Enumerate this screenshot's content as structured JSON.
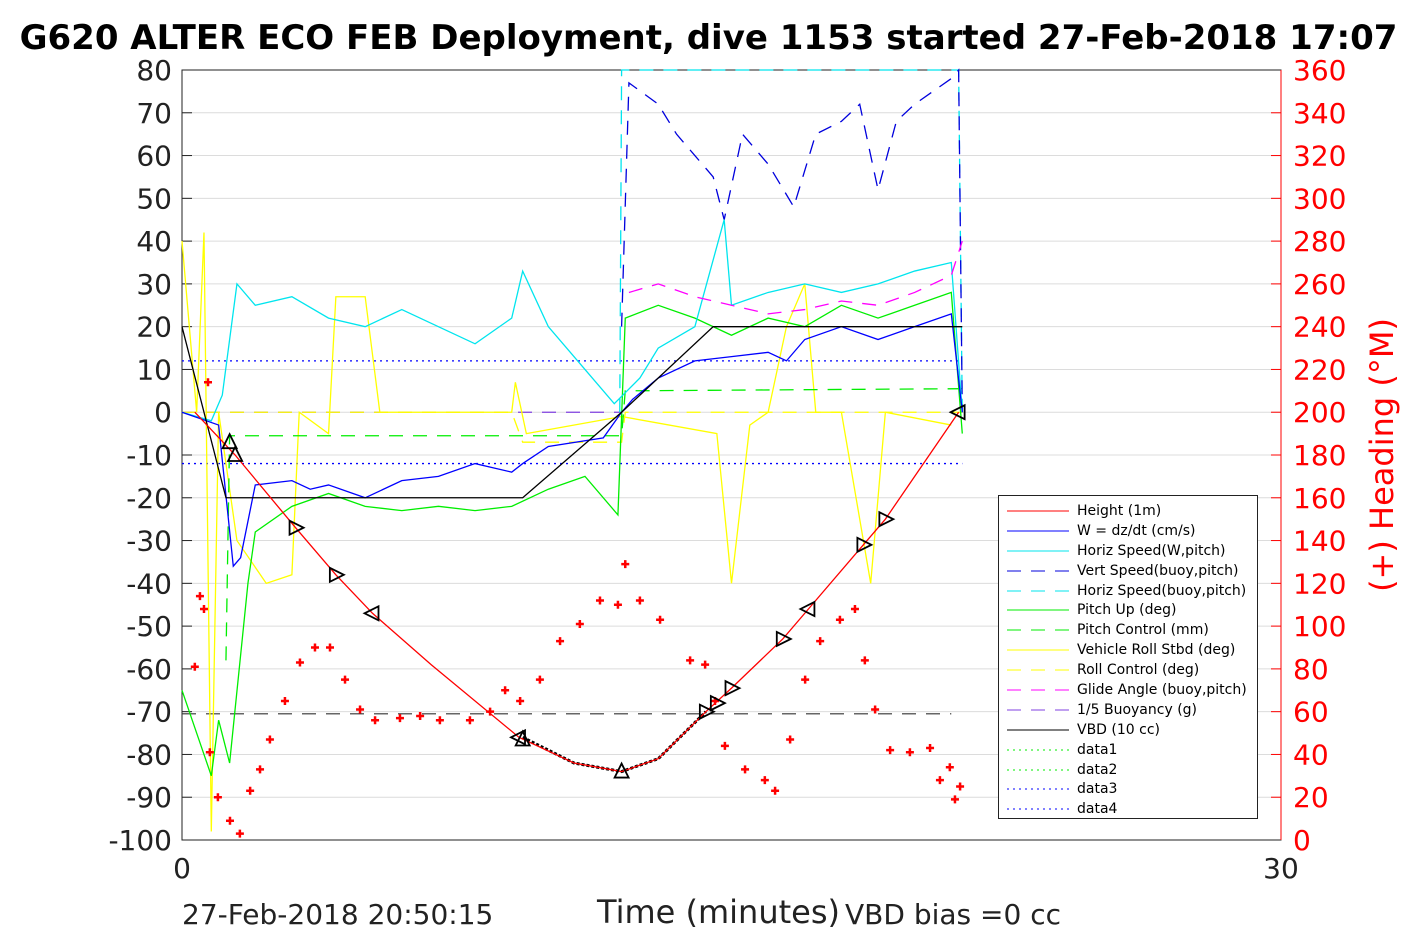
{
  "chart_data": {
    "type": "line",
    "title": "G620 ALTER ECO FEB Deployment, dive 1153 started 27-Feb-2018 17:07",
    "xlabel": "Time (minutes)",
    "ylabel_right": "(+) Heading (°M)",
    "xlim": [
      0,
      30
    ],
    "ylim": [
      -100,
      80
    ],
    "ylim_right": [
      0,
      360
    ],
    "xticks": [
      "0",
      "30"
    ],
    "yticks": [
      "80",
      "70",
      "60",
      "50",
      "40",
      "30",
      "20",
      "10",
      "0",
      "-10",
      "-20",
      "-30",
      "-40",
      "-50",
      "-60",
      "-70",
      "-80",
      "-90",
      "-100"
    ],
    "yticks_right": [
      "360",
      "340",
      "320",
      "300",
      "280",
      "260",
      "240",
      "220",
      "200",
      "180",
      "160",
      "140",
      "120",
      "100",
      "80",
      "60",
      "40",
      "20",
      "0"
    ],
    "grid": true,
    "legend_position": "lower-right",
    "footer_left": "27-Feb-2018 20:50:15",
    "footer_right": "VBD bias =0 cc",
    "series": [
      {
        "name": "Height (1m)",
        "color": "#ff0000",
        "dash": "",
        "points": [
          [
            0.35,
            0
          ],
          [
            1.45,
            -10
          ],
          [
            3.1,
            -27
          ],
          [
            4.2,
            -38
          ],
          [
            5.2,
            -47
          ],
          [
            6.8,
            -59
          ],
          [
            9.2,
            -76
          ],
          [
            10.7,
            -82
          ],
          [
            12,
            -84
          ],
          [
            13,
            -81
          ],
          [
            14.3,
            -70
          ],
          [
            15,
            -64.5
          ],
          [
            16.4,
            -53
          ],
          [
            17.1,
            -46
          ],
          [
            18.6,
            -31
          ],
          [
            19.2,
            -25
          ],
          [
            21.2,
            0
          ]
        ]
      },
      {
        "name": "W = dz/dt (cm/s)",
        "color": "#0000ff",
        "dash": "",
        "points": [
          [
            0,
            0
          ],
          [
            1,
            -3
          ],
          [
            1.4,
            -36
          ],
          [
            1.6,
            -34
          ],
          [
            2,
            -17
          ],
          [
            3,
            -16
          ],
          [
            3.5,
            -18
          ],
          [
            4,
            -17
          ],
          [
            5,
            -20
          ],
          [
            6,
            -16
          ],
          [
            7,
            -15
          ],
          [
            8,
            -12
          ],
          [
            9,
            -14
          ],
          [
            9.3,
            -12
          ],
          [
            10,
            -8
          ],
          [
            11.5,
            -6
          ],
          [
            12,
            0
          ],
          [
            12.3,
            3
          ],
          [
            13,
            8
          ],
          [
            14,
            12
          ],
          [
            15,
            13
          ],
          [
            16,
            14
          ],
          [
            16.5,
            12
          ],
          [
            17,
            17
          ],
          [
            18,
            20
          ],
          [
            19,
            17
          ],
          [
            20,
            20
          ],
          [
            21,
            23
          ],
          [
            21.3,
            0
          ]
        ]
      },
      {
        "name": "Horiz Speed(W,pitch)",
        "color": "#00e5ee",
        "dash": "",
        "points": [
          [
            0,
            0
          ],
          [
            0.8,
            -2
          ],
          [
            1.1,
            4
          ],
          [
            1.5,
            30
          ],
          [
            2,
            25
          ],
          [
            3,
            27
          ],
          [
            4,
            22
          ],
          [
            5,
            20
          ],
          [
            6,
            24
          ],
          [
            7,
            20
          ],
          [
            8,
            16
          ],
          [
            9,
            22
          ],
          [
            9.3,
            33
          ],
          [
            10,
            20
          ],
          [
            11,
            10
          ],
          [
            11.8,
            2
          ],
          [
            12.5,
            8
          ],
          [
            13,
            15
          ],
          [
            14,
            20
          ],
          [
            14.8,
            45
          ],
          [
            15,
            25
          ],
          [
            16,
            28
          ],
          [
            17,
            30
          ],
          [
            18,
            28
          ],
          [
            19,
            30
          ],
          [
            20,
            33
          ],
          [
            21,
            35
          ],
          [
            21.3,
            0
          ]
        ]
      },
      {
        "name": "Vert Speed(buoy,pitch)",
        "color": "#0000dd",
        "dash": "14 10",
        "points": [
          [
            12,
            20
          ],
          [
            12.2,
            77
          ],
          [
            13,
            72
          ],
          [
            13.5,
            65
          ],
          [
            14,
            60
          ],
          [
            14.5,
            55
          ],
          [
            14.8,
            45
          ],
          [
            15.3,
            65
          ],
          [
            16,
            58
          ],
          [
            16.7,
            48
          ],
          [
            17.3,
            65
          ],
          [
            18,
            68
          ],
          [
            18.5,
            72
          ],
          [
            19,
            52
          ],
          [
            19.5,
            68
          ],
          [
            20,
            72
          ],
          [
            21,
            78
          ],
          [
            21.2,
            80
          ],
          [
            21.3,
            0
          ]
        ]
      },
      {
        "name": "Horiz Speed(buoy,pitch)",
        "color": "#00e5ee",
        "dash": "14 10",
        "points": [
          [
            11.95,
            0
          ],
          [
            12,
            80
          ],
          [
            21.2,
            80
          ],
          [
            21.3,
            0
          ]
        ]
      },
      {
        "name": "Pitch Up (deg)",
        "color": "#00ee00",
        "dash": "",
        "points": [
          [
            0,
            -65
          ],
          [
            0.6,
            -80
          ],
          [
            0.8,
            -85
          ],
          [
            1,
            -72
          ],
          [
            1.3,
            -82
          ],
          [
            1.8,
            -40
          ],
          [
            2,
            -28
          ],
          [
            3,
            -22
          ],
          [
            4,
            -19
          ],
          [
            5,
            -22
          ],
          [
            6,
            -23
          ],
          [
            7,
            -22
          ],
          [
            8,
            -23
          ],
          [
            9,
            -22
          ],
          [
            10,
            -18
          ],
          [
            11,
            -15
          ],
          [
            11.9,
            -24
          ],
          [
            12.1,
            22
          ],
          [
            13,
            25
          ],
          [
            14,
            22
          ],
          [
            15,
            18
          ],
          [
            16,
            22
          ],
          [
            17,
            20
          ],
          [
            18,
            25
          ],
          [
            19,
            22
          ],
          [
            20,
            25
          ],
          [
            21,
            28
          ],
          [
            21.3,
            -5
          ]
        ]
      },
      {
        "name": "Pitch Control (mm)",
        "color": "#00ee00",
        "dash": "14 10",
        "points": [
          [
            1.2,
            -58
          ],
          [
            1.3,
            -5.5
          ],
          [
            12,
            -5.5
          ],
          [
            12.1,
            5
          ],
          [
            21.3,
            5.5
          ]
        ]
      },
      {
        "name": "Vehicle Roll Stbd (deg)",
        "color": "#ffff00",
        "dash": "",
        "points": [
          [
            0,
            40
          ],
          [
            0.4,
            0
          ],
          [
            0.6,
            42
          ],
          [
            0.8,
            -98
          ],
          [
            1,
            0
          ],
          [
            1.5,
            -30
          ],
          [
            2.3,
            -40
          ],
          [
            3,
            -38
          ],
          [
            3.2,
            0
          ],
          [
            4,
            -5
          ],
          [
            4.2,
            27
          ],
          [
            5,
            27
          ],
          [
            5.4,
            0
          ],
          [
            7,
            0
          ],
          [
            9,
            0
          ],
          [
            9.1,
            7
          ],
          [
            9.4,
            -5
          ],
          [
            12,
            -1
          ],
          [
            14.6,
            -5
          ],
          [
            15,
            -40
          ],
          [
            15.5,
            -3
          ],
          [
            16,
            0
          ],
          [
            16.5,
            20
          ],
          [
            17,
            30
          ],
          [
            17.3,
            0
          ],
          [
            18,
            0
          ],
          [
            18.8,
            -40
          ],
          [
            19.2,
            0
          ],
          [
            21,
            -3
          ]
        ]
      },
      {
        "name": "Roll Control (deg)",
        "color": "#ffff00",
        "dash": "14 10",
        "points": [
          [
            0,
            0
          ],
          [
            9,
            0
          ],
          [
            9.3,
            -7
          ],
          [
            12,
            -7
          ],
          [
            12.1,
            0
          ],
          [
            21.3,
            0
          ]
        ]
      },
      {
        "name": "Glide Angle (buoy,pitch)",
        "color": "#ff00ff",
        "dash": "14 10",
        "points": [
          [
            12.2,
            28
          ],
          [
            13,
            30
          ],
          [
            14,
            27
          ],
          [
            15,
            25
          ],
          [
            16,
            23
          ],
          [
            17,
            24
          ],
          [
            18,
            26
          ],
          [
            19,
            25
          ],
          [
            20,
            28
          ],
          [
            21,
            32
          ],
          [
            21.3,
            40
          ]
        ]
      },
      {
        "name": "1/5 Buoyancy (g)",
        "color": "#8040e0",
        "dash": "14 10",
        "points": [
          [
            0,
            0
          ],
          [
            12,
            0
          ]
        ]
      },
      {
        "name": "VBD (10 cc)",
        "color": "#000000",
        "dash": "",
        "points": [
          [
            0,
            20
          ],
          [
            1.2,
            -20
          ],
          [
            9.3,
            -20
          ],
          [
            12,
            0
          ],
          [
            14.5,
            20
          ],
          [
            21.3,
            20
          ]
        ]
      },
      {
        "name": "data1",
        "color": "#00ee00",
        "dash": "2 4",
        "points": []
      },
      {
        "name": "data2",
        "color": "#00ee00",
        "dash": "2 4",
        "points": []
      },
      {
        "name": "data3",
        "color": "#0000ff",
        "dash": "2 4",
        "points": [
          [
            0,
            12
          ],
          [
            21.3,
            12
          ]
        ]
      },
      {
        "name": "data4",
        "color": "#0000ff",
        "dash": "2 4",
        "points": [
          [
            0,
            -12
          ],
          [
            21.3,
            -12
          ]
        ]
      }
    ],
    "extra_lines": [
      {
        "color": "#333333",
        "dash": "14 10",
        "points": [
          [
            0,
            -70.5
          ],
          [
            21,
            -70.5
          ]
        ]
      },
      {
        "color": "#000000",
        "dash": "3 2",
        "width": 3,
        "points": [
          [
            9.3,
            -76
          ],
          [
            10.7,
            -82
          ],
          [
            12,
            -84
          ],
          [
            13,
            -81
          ],
          [
            14.3,
            -70
          ]
        ]
      }
    ],
    "heading": [
      [
        0.35,
        81
      ],
      [
        0.49,
        114
      ],
      [
        0.6,
        108
      ],
      [
        0.71,
        214
      ],
      [
        0.76,
        41
      ],
      [
        0.98,
        20
      ],
      [
        1.31,
        9
      ],
      [
        1.58,
        3
      ],
      [
        1.86,
        23
      ],
      [
        2.13,
        33
      ],
      [
        2.4,
        47
      ],
      [
        2.81,
        65
      ],
      [
        3.22,
        83
      ],
      [
        3.63,
        90
      ],
      [
        4.04,
        90
      ],
      [
        4.45,
        75
      ],
      [
        4.86,
        61
      ],
      [
        5.27,
        56
      ],
      [
        5.95,
        57
      ],
      [
        6.5,
        58
      ],
      [
        7.04,
        56
      ],
      [
        7.86,
        56
      ],
      [
        8.41,
        60
      ],
      [
        8.82,
        70
      ],
      [
        9.23,
        65
      ],
      [
        9.77,
        75
      ],
      [
        10.32,
        93
      ],
      [
        10.86,
        101
      ],
      [
        11.41,
        112
      ],
      [
        11.9,
        110
      ],
      [
        12.1,
        129
      ],
      [
        12.5,
        112
      ],
      [
        13.05,
        103
      ],
      [
        13.87,
        84
      ],
      [
        14.28,
        82
      ],
      [
        14.55,
        65
      ],
      [
        14.82,
        44
      ],
      [
        15.37,
        33
      ],
      [
        15.91,
        28
      ],
      [
        16.19,
        23
      ],
      [
        16.6,
        47
      ],
      [
        17.01,
        75
      ],
      [
        17.42,
        93
      ],
      [
        17.96,
        103
      ],
      [
        18.37,
        108
      ],
      [
        18.64,
        84
      ],
      [
        18.92,
        61
      ],
      [
        19.33,
        42
      ],
      [
        19.87,
        41
      ],
      [
        20.42,
        43
      ],
      [
        20.69,
        28
      ],
      [
        20.96,
        34
      ],
      [
        21.1,
        19
      ],
      [
        21.24,
        25
      ]
    ],
    "markers": [
      [
        1.3,
        -7,
        "up"
      ],
      [
        1.45,
        -10,
        "up"
      ],
      [
        3.1,
        -27,
        "right"
      ],
      [
        4.2,
        -38,
        "right"
      ],
      [
        5.2,
        -47,
        "left"
      ],
      [
        9.2,
        -76,
        "left"
      ],
      [
        9.3,
        -76.5,
        "up"
      ],
      [
        12,
        -84,
        "up"
      ],
      [
        14.3,
        -70,
        "right"
      ],
      [
        14.6,
        -68,
        "right"
      ],
      [
        15,
        -64.5,
        "right"
      ],
      [
        16.4,
        -53,
        "right"
      ],
      [
        17.1,
        -46,
        "left"
      ],
      [
        18.6,
        -31,
        "right"
      ],
      [
        19.2,
        -25,
        "right"
      ],
      [
        21.2,
        0,
        "left"
      ]
    ]
  }
}
